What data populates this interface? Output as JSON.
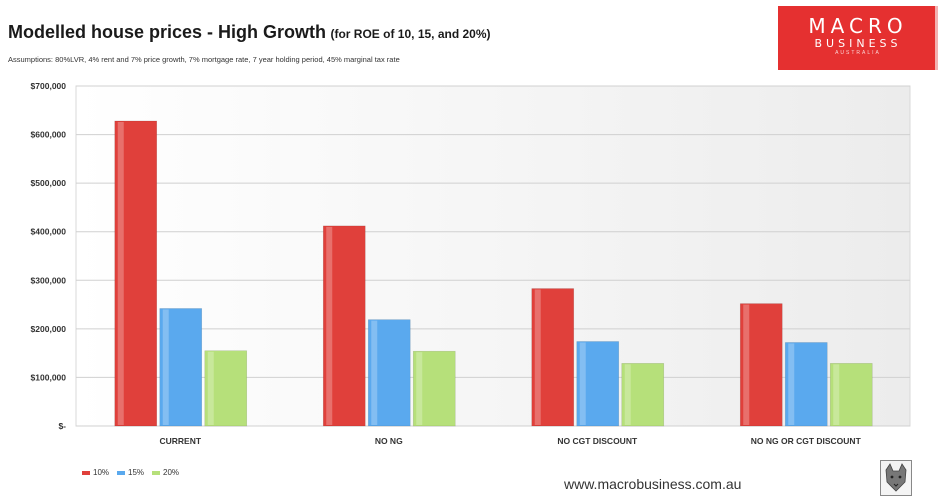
{
  "header": {
    "title": "Modelled house prices - High Growth",
    "subtitle": "(for ROE of 10, 15, and 20%)",
    "assumptions": "Assumptions: 80%LVR, 4% rent and 7% price growth, 7% mortgage rate, 7 year holding period, 45% marginal tax rate"
  },
  "logo": {
    "line1": "MACRO",
    "line2": "BUSINESS",
    "line3": "AUSTRALIA"
  },
  "footer": {
    "url": "www.macrobusiness.com.au",
    "emblem_icon": "wolf-emblem-icon"
  },
  "chart_data": {
    "type": "bar",
    "categories": [
      "CURRENT",
      "NO NG",
      "NO CGT DISCOUNT",
      "NO NG OR CGT DISCOUNT"
    ],
    "series": [
      {
        "name": "10%",
        "color": "#e0403b",
        "values": [
          628000,
          412000,
          283000,
          252000
        ]
      },
      {
        "name": "15%",
        "color": "#5aa9ee",
        "values": [
          242000,
          219000,
          174000,
          172000
        ]
      },
      {
        "name": "20%",
        "color": "#b6e07a",
        "values": [
          155000,
          154000,
          129000,
          129000
        ]
      }
    ],
    "ylim": [
      0,
      700000
    ],
    "y_ticks": [
      0,
      100000,
      200000,
      300000,
      400000,
      500000,
      600000,
      700000
    ],
    "y_tick_labels": [
      "$-",
      "$100,000",
      "$200,000",
      "$300,000",
      "$400,000",
      "$500,000",
      "$600,000",
      "$700,000"
    ],
    "grid": true,
    "legend_position": "bottom-left"
  }
}
